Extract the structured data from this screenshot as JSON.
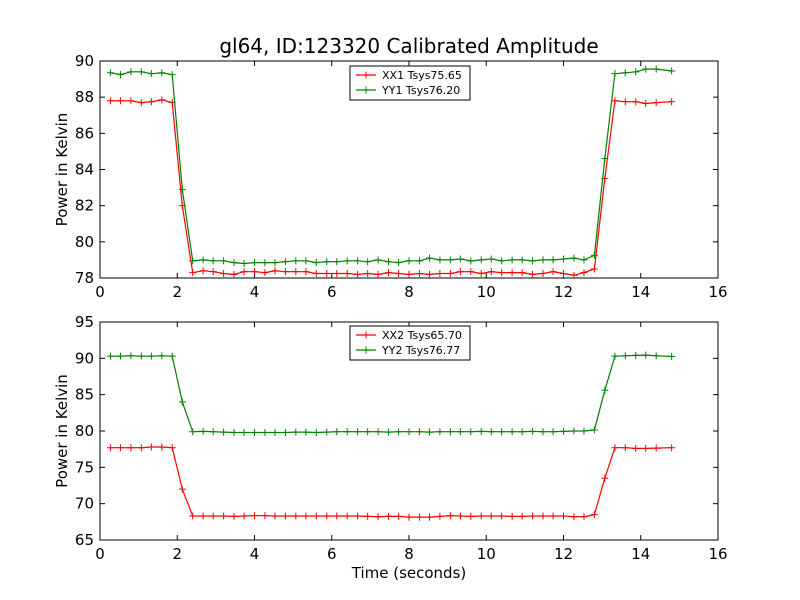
{
  "chart_data": [
    {
      "type": "line",
      "title": "gl64, ID:123320 Calibrated Amplitude",
      "xlabel": "",
      "ylabel": "Power in Kelvin",
      "xlim": [
        0,
        16
      ],
      "ylim": [
        78,
        90
      ],
      "xticks": [
        "0",
        "2",
        "4",
        "6",
        "8",
        "10",
        "12",
        "14",
        "16"
      ],
      "yticks": [
        "78",
        "80",
        "82",
        "84",
        "86",
        "88",
        "90"
      ],
      "legend_position": "top-center",
      "x": [
        0.27,
        0.53,
        0.8,
        1.07,
        1.33,
        1.6,
        1.87,
        2.13,
        2.4,
        2.67,
        2.93,
        3.2,
        3.47,
        3.73,
        4.0,
        4.27,
        4.53,
        4.8,
        5.07,
        5.33,
        5.6,
        5.87,
        6.13,
        6.4,
        6.67,
        6.93,
        7.2,
        7.47,
        7.73,
        8.0,
        8.27,
        8.53,
        8.8,
        9.07,
        9.33,
        9.6,
        9.87,
        10.13,
        10.4,
        10.67,
        10.93,
        11.2,
        11.47,
        11.73,
        12.0,
        12.27,
        12.53,
        12.8,
        13.07,
        13.33,
        13.6,
        13.87,
        14.13,
        14.4,
        14.8
      ],
      "series": [
        {
          "name": "XX1 Tsys75.65",
          "color": "#ff0000",
          "values": [
            87.8,
            87.8,
            87.8,
            87.7,
            87.75,
            87.85,
            87.7,
            82.0,
            78.3,
            78.4,
            78.35,
            78.25,
            78.2,
            78.35,
            78.35,
            78.3,
            78.4,
            78.35,
            78.35,
            78.35,
            78.25,
            78.25,
            78.25,
            78.25,
            78.2,
            78.25,
            78.2,
            78.3,
            78.25,
            78.2,
            78.25,
            78.2,
            78.25,
            78.25,
            78.35,
            78.35,
            78.25,
            78.35,
            78.3,
            78.3,
            78.3,
            78.2,
            78.25,
            78.35,
            78.25,
            78.15,
            78.3,
            78.5,
            83.5,
            87.8,
            87.75,
            87.75,
            87.65,
            87.7,
            87.75
          ]
        },
        {
          "name": "YY1 Tsys76.20",
          "color": "#008000",
          "values": [
            89.35,
            89.25,
            89.4,
            89.4,
            89.3,
            89.35,
            89.25,
            82.9,
            78.95,
            79.0,
            78.95,
            78.95,
            78.85,
            78.8,
            78.85,
            78.85,
            78.85,
            78.9,
            78.95,
            78.95,
            78.85,
            78.9,
            78.9,
            78.95,
            78.95,
            78.9,
            79.0,
            78.9,
            78.85,
            78.95,
            78.95,
            79.1,
            79.0,
            79.0,
            79.05,
            78.95,
            79.0,
            79.05,
            78.95,
            79.0,
            79.0,
            78.95,
            79.0,
            79.0,
            79.05,
            79.1,
            79.0,
            79.25,
            84.6,
            89.3,
            89.35,
            89.4,
            89.55,
            89.55,
            89.45
          ]
        }
      ]
    },
    {
      "type": "line",
      "title": "",
      "xlabel": "Time (seconds)",
      "ylabel": "Power in Kelvin",
      "xlim": [
        0,
        16
      ],
      "ylim": [
        65,
        95
      ],
      "xticks": [
        "0",
        "2",
        "4",
        "6",
        "8",
        "10",
        "12",
        "14",
        "16"
      ],
      "yticks": [
        "65",
        "70",
        "75",
        "80",
        "85",
        "90",
        "95"
      ],
      "legend_position": "top-center",
      "x": [
        0.27,
        0.53,
        0.8,
        1.07,
        1.33,
        1.6,
        1.87,
        2.13,
        2.4,
        2.67,
        2.93,
        3.2,
        3.47,
        3.73,
        4.0,
        4.27,
        4.53,
        4.8,
        5.07,
        5.33,
        5.6,
        5.87,
        6.13,
        6.4,
        6.67,
        6.93,
        7.2,
        7.47,
        7.73,
        8.0,
        8.27,
        8.53,
        8.8,
        9.07,
        9.33,
        9.6,
        9.87,
        10.13,
        10.4,
        10.67,
        10.93,
        11.2,
        11.47,
        11.73,
        12.0,
        12.27,
        12.53,
        12.8,
        13.07,
        13.33,
        13.6,
        13.87,
        14.13,
        14.4,
        14.8
      ],
      "series": [
        {
          "name": "XX2 Tsys65.70",
          "color": "#ff0000",
          "values": [
            77.7,
            77.7,
            77.7,
            77.7,
            77.8,
            77.8,
            77.7,
            72.0,
            68.3,
            68.3,
            68.3,
            68.3,
            68.25,
            68.3,
            68.35,
            68.35,
            68.3,
            68.3,
            68.3,
            68.3,
            68.3,
            68.3,
            68.3,
            68.3,
            68.3,
            68.25,
            68.2,
            68.25,
            68.25,
            68.15,
            68.15,
            68.15,
            68.25,
            68.35,
            68.3,
            68.25,
            68.3,
            68.3,
            68.3,
            68.25,
            68.25,
            68.3,
            68.3,
            68.3,
            68.3,
            68.2,
            68.2,
            68.5,
            73.5,
            77.7,
            77.7,
            77.6,
            77.6,
            77.65,
            77.7
          ]
        },
        {
          "name": "YY2 Tsys76.77",
          "color": "#008000",
          "values": [
            90.3,
            90.3,
            90.35,
            90.3,
            90.3,
            90.35,
            90.3,
            84.0,
            79.9,
            79.95,
            79.9,
            79.85,
            79.8,
            79.8,
            79.8,
            79.8,
            79.8,
            79.8,
            79.85,
            79.85,
            79.8,
            79.85,
            79.9,
            79.9,
            79.9,
            79.9,
            79.9,
            79.85,
            79.9,
            79.9,
            79.9,
            79.85,
            79.9,
            79.9,
            79.9,
            79.9,
            79.95,
            79.9,
            79.9,
            79.9,
            79.9,
            79.95,
            79.9,
            79.9,
            79.95,
            80.0,
            80.0,
            80.15,
            85.6,
            90.3,
            90.35,
            90.4,
            90.45,
            90.35,
            90.25
          ]
        }
      ]
    }
  ]
}
